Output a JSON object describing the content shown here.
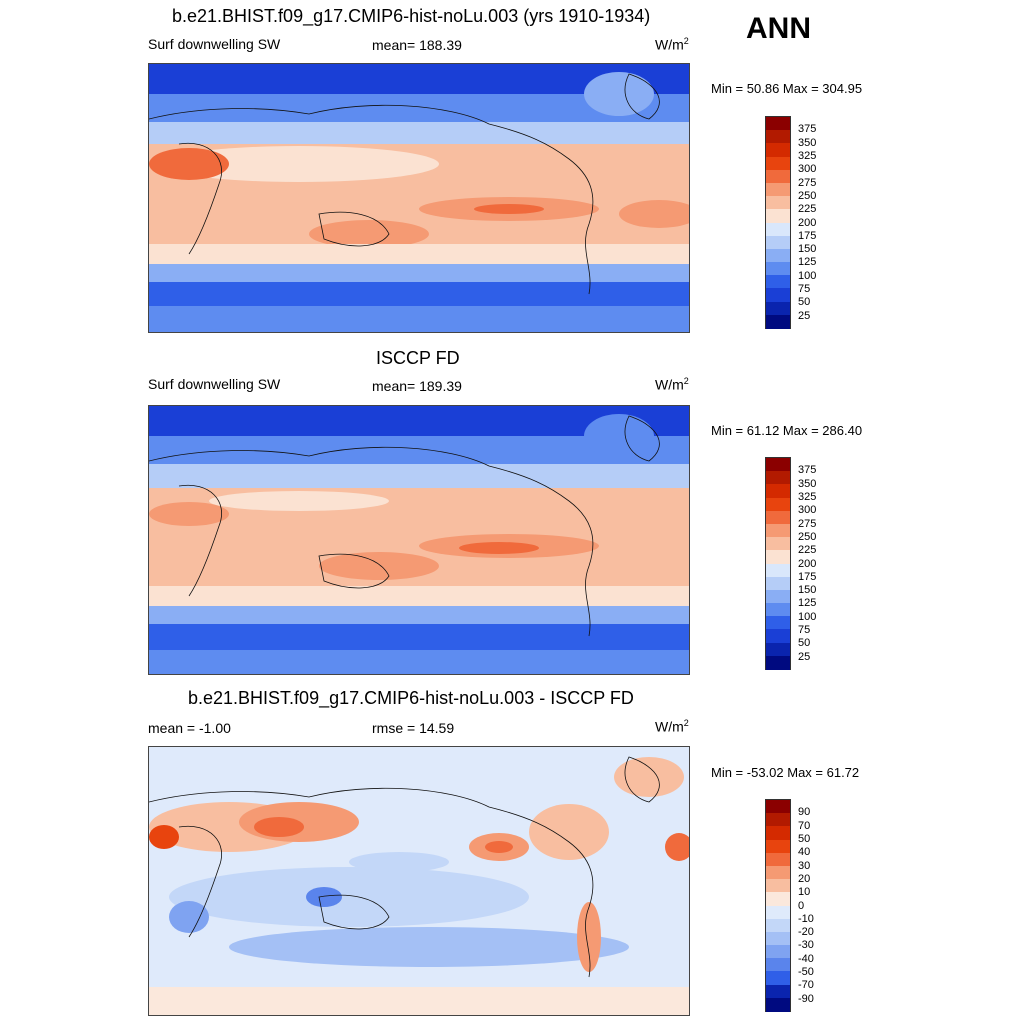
{
  "season": "ANN",
  "panels": [
    {
      "title": "b.e21.BHIST.f09_g17.CMIP6-hist-noLu.003 (yrs 1910-1934)",
      "left": "Surf downwelling SW",
      "center": "mean= 188.39",
      "units": "W/m",
      "units_sup": "2",
      "minmax": "Min =  50.86 Max = 304.95"
    },
    {
      "title": "ISCCP FD",
      "left": "Surf downwelling SW",
      "center": "mean= 189.39",
      "units": "W/m",
      "units_sup": "2",
      "minmax": "Min =  61.12 Max = 286.40"
    },
    {
      "title": "b.e21.BHIST.f09_g17.CMIP6-hist-noLu.003 - ISCCP FD",
      "left": "mean =  -1.00",
      "center": "rmse =  14.59",
      "units": "W/m",
      "units_sup": "2",
      "minmax": "Min = -53.02 Max =  61.72"
    }
  ],
  "chart_data": [
    {
      "type": "heatmap",
      "title": "b.e21.BHIST.f09_g17.CMIP6-hist-noLu.003 (yrs 1910-1934)",
      "variable": "Surf downwelling SW",
      "mean": 188.39,
      "min": 50.86,
      "max": 304.95,
      "units": "W/m2",
      "colorbar_levels": [
        "375",
        "350",
        "325",
        "300",
        "275",
        "250",
        "225",
        "200",
        "175",
        "150",
        "125",
        "100",
        "75",
        "50",
        "25"
      ],
      "colors": [
        "#8b0000",
        "#b21a00",
        "#d42a00",
        "#e8440e",
        "#f06a3c",
        "#f59a73",
        "#f8bea0",
        "#fbe2d2",
        "#d9e7fb",
        "#b5cdf7",
        "#8aaef4",
        "#5e8cf0",
        "#2f5fe8",
        "#1a3fd6",
        "#0a24ae",
        "#000a80"
      ]
    },
    {
      "type": "heatmap",
      "title": "ISCCP FD",
      "variable": "Surf downwelling SW",
      "mean": 189.39,
      "min": 61.12,
      "max": 286.4,
      "units": "W/m2",
      "colorbar_levels": [
        "375",
        "350",
        "325",
        "300",
        "275",
        "250",
        "225",
        "200",
        "175",
        "150",
        "125",
        "100",
        "75",
        "50",
        "25"
      ],
      "colors": [
        "#8b0000",
        "#b21a00",
        "#d42a00",
        "#e8440e",
        "#f06a3c",
        "#f59a73",
        "#f8bea0",
        "#fbe2d2",
        "#d9e7fb",
        "#b5cdf7",
        "#8aaef4",
        "#5e8cf0",
        "#2f5fe8",
        "#1a3fd6",
        "#0a24ae",
        "#000a80"
      ]
    },
    {
      "type": "heatmap",
      "title": "b.e21.BHIST.f09_g17.CMIP6-hist-noLu.003 - ISCCP FD",
      "mean": -1.0,
      "rmse": 14.59,
      "min": -53.02,
      "max": 61.72,
      "units": "W/m2",
      "colorbar_levels": [
        "90",
        "70",
        "50",
        "40",
        "30",
        "20",
        "10",
        "0",
        "-10",
        "-20",
        "-30",
        "-40",
        "-50",
        "-70",
        "-90"
      ],
      "colors": [
        "#8b0000",
        "#b21a00",
        "#d42a00",
        "#e8440e",
        "#f06a3c",
        "#f59a73",
        "#f8bea0",
        "#fbe8dc",
        "#dfeafb",
        "#c3d7f8",
        "#a4c0f5",
        "#7fa3f1",
        "#5a84ec",
        "#2f5fe8",
        "#0a24ae",
        "#000a80"
      ]
    }
  ]
}
